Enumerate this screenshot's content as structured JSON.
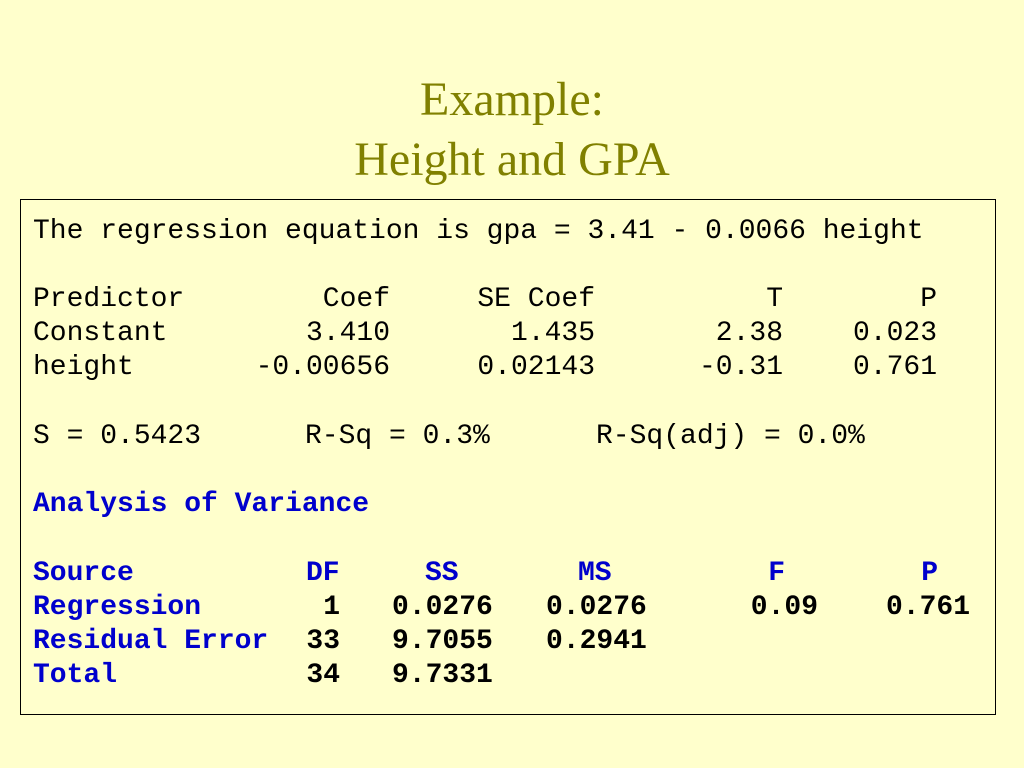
{
  "title": {
    "line1": "Example:",
    "line2": "Height and GPA"
  },
  "regression": {
    "equation": "The regression equation is gpa = 3.41 - 0.0066 height",
    "headers": {
      "predictor": "Predictor",
      "coef": "Coef",
      "se_coef": "SE Coef",
      "t": "T",
      "p": "P"
    },
    "rows": [
      {
        "predictor": "Constant",
        "coef": "3.410",
        "se_coef": "1.435",
        "t": "2.38",
        "p": "0.023"
      },
      {
        "predictor": "height",
        "coef": "-0.00656",
        "se_coef": "0.02143",
        "t": "-0.31",
        "p": "0.761"
      }
    ],
    "s": "S = 0.5423",
    "rsq": "R-Sq = 0.3%",
    "rsq_adj": "R-Sq(adj) = 0.0%"
  },
  "anova": {
    "heading": "Analysis of Variance",
    "headers": {
      "source": "Source",
      "df": "DF",
      "ss": "SS",
      "ms": "MS",
      "f": "F",
      "p": "P"
    },
    "rows": [
      {
        "source": "Regression",
        "df": "1",
        "ss": "0.0276",
        "ms": "0.0276",
        "f": "0.09",
        "p": "0.761"
      },
      {
        "source": "Residual Error",
        "df": "33",
        "ss": "9.7055",
        "ms": "0.2941",
        "f": "",
        "p": ""
      },
      {
        "source": "Total",
        "df": "34",
        "ss": "9.7331",
        "ms": "",
        "f": "",
        "p": ""
      }
    ]
  },
  "colors": {
    "background": "#ffffcc",
    "title": "#808000",
    "anova_text": "#0000cc"
  }
}
